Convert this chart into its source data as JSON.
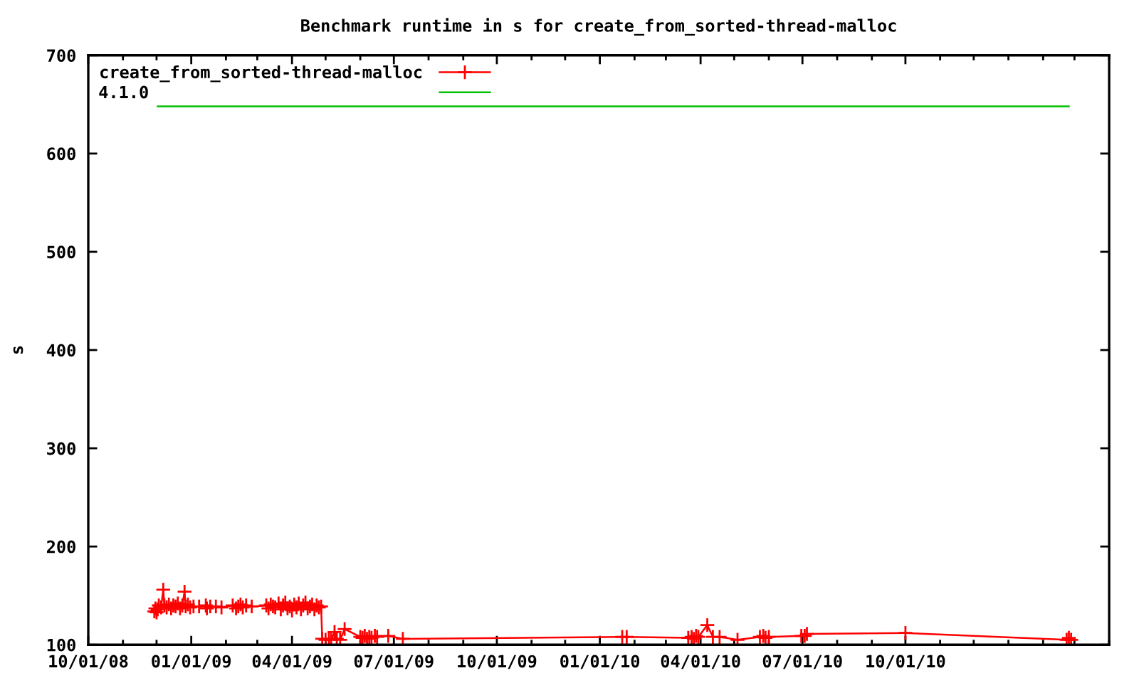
{
  "chart_data": {
    "type": "line",
    "title": "Benchmark runtime in s for create_from_sorted-thread-malloc",
    "ylabel": "s",
    "xlim": [
      "2008-10-01",
      "2011-04-01"
    ],
    "ylim": [
      100,
      700
    ],
    "xticks": [
      {
        "value": "2008-10-01",
        "label": "10/01/08"
      },
      {
        "value": "2008-11-01",
        "label": null
      },
      {
        "value": "2008-12-01",
        "label": null
      },
      {
        "value": "2009-01-01",
        "label": "01/01/09"
      },
      {
        "value": "2009-02-01",
        "label": null
      },
      {
        "value": "2009-03-01",
        "label": null
      },
      {
        "value": "2009-04-01",
        "label": "04/01/09"
      },
      {
        "value": "2009-05-01",
        "label": null
      },
      {
        "value": "2009-06-01",
        "label": null
      },
      {
        "value": "2009-07-01",
        "label": "07/01/09"
      },
      {
        "value": "2009-08-01",
        "label": null
      },
      {
        "value": "2009-09-01",
        "label": null
      },
      {
        "value": "2009-10-01",
        "label": "10/01/09"
      },
      {
        "value": "2009-11-01",
        "label": null
      },
      {
        "value": "2009-12-01",
        "label": null
      },
      {
        "value": "2010-01-01",
        "label": "01/01/10"
      },
      {
        "value": "2010-02-01",
        "label": null
      },
      {
        "value": "2010-03-01",
        "label": null
      },
      {
        "value": "2010-04-01",
        "label": "04/01/10"
      },
      {
        "value": "2010-05-01",
        "label": null
      },
      {
        "value": "2010-06-01",
        "label": null
      },
      {
        "value": "2010-07-01",
        "label": "07/01/10"
      },
      {
        "value": "2010-08-01",
        "label": null
      },
      {
        "value": "2010-09-01",
        "label": null
      },
      {
        "value": "2010-10-01",
        "label": "10/01/10"
      },
      {
        "value": "2010-11-01",
        "label": null
      },
      {
        "value": "2010-12-01",
        "label": null
      },
      {
        "value": "2011-01-01",
        "label": null
      },
      {
        "value": "2011-02-01",
        "label": null
      },
      {
        "value": "2011-03-01",
        "label": null
      },
      {
        "value": "2011-04-01",
        "label": null
      }
    ],
    "yticks": [
      100,
      200,
      300,
      400,
      500,
      600,
      700
    ],
    "legend": "top left",
    "marker": "cross",
    "line_style": "solid",
    "series": [
      {
        "name": "create_from_sorted-thread-malloc",
        "color": "#ff0000",
        "x": [
          "2008-11-29",
          "2008-11-30",
          "2008-12-01",
          "2008-12-02",
          "2008-12-03",
          "2008-12-05",
          "2008-12-07",
          "2008-12-08",
          "2008-12-10",
          "2008-12-12",
          "2008-12-14",
          "2008-12-16",
          "2008-12-18",
          "2008-12-20",
          "2008-12-22",
          "2008-12-24",
          "2008-12-26",
          "2008-12-27",
          "2008-12-29",
          "2008-12-31",
          "2009-01-03",
          "2009-01-08",
          "2009-01-14",
          "2009-01-15",
          "2009-01-18",
          "2009-01-23",
          "2009-01-28",
          "2009-02-07",
          "2009-02-10",
          "2009-02-12",
          "2009-02-14",
          "2009-02-16",
          "2009-02-19",
          "2009-02-24",
          "2009-03-09",
          "2009-03-11",
          "2009-03-13",
          "2009-03-15",
          "2009-03-17",
          "2009-03-20",
          "2009-03-22",
          "2009-03-24",
          "2009-03-26",
          "2009-03-28",
          "2009-03-30",
          "2009-04-01",
          "2009-04-03",
          "2009-04-05",
          "2009-04-07",
          "2009-04-09",
          "2009-04-11",
          "2009-04-13",
          "2009-04-15",
          "2009-04-17",
          "2009-04-19",
          "2009-04-21",
          "2009-04-23",
          "2009-04-25",
          "2009-04-27",
          "2009-04-28",
          "2009-05-01",
          "2009-05-04",
          "2009-05-06",
          "2009-05-09",
          "2009-05-11",
          "2009-05-14",
          "2009-05-18",
          "2009-06-01",
          "2009-06-03",
          "2009-06-05",
          "2009-06-07",
          "2009-06-09",
          "2009-06-11",
          "2009-06-14",
          "2009-06-16",
          "2009-06-26",
          "2009-07-09",
          "2010-01-21",
          "2010-01-25",
          "2010-03-21",
          "2010-03-24",
          "2010-03-26",
          "2010-03-28",
          "2010-03-30",
          "2010-04-07",
          "2010-04-12",
          "2010-04-18",
          "2010-05-04",
          "2010-05-24",
          "2010-05-27",
          "2010-05-29",
          "2010-06-01",
          "2010-06-30",
          "2010-07-03",
          "2010-07-05",
          "2010-10-01",
          "2011-02-22",
          "2011-02-24",
          "2011-02-26"
        ],
        "values": [
          134,
          137,
          133,
          136,
          140,
          138,
          156,
          140,
          138,
          141,
          137,
          140,
          139,
          142,
          137,
          140,
          154,
          139,
          141,
          138,
          139,
          139,
          140,
          137,
          139,
          139,
          138,
          140,
          137,
          139,
          141,
          138,
          140,
          139,
          140,
          137,
          141,
          139,
          138,
          142,
          136,
          140,
          143,
          137,
          139,
          135,
          141,
          138,
          142,
          136,
          140,
          143,
          137,
          139,
          141,
          136,
          140,
          138,
          139,
          106,
          105,
          106,
          105,
          113,
          106,
          105,
          116,
          108,
          107,
          109,
          106,
          108,
          107,
          109,
          108,
          109,
          106,
          108,
          108,
          107,
          108,
          106,
          109,
          108,
          120,
          108,
          108,
          105,
          108,
          109,
          107,
          108,
          109,
          109,
          111,
          112,
          105,
          107,
          105
        ]
      },
      {
        "name": "4.1.0",
        "color": "#00c000",
        "marker": "none",
        "x": [
          "2008-12-02",
          "2011-02-24"
        ],
        "values": [
          648,
          648
        ]
      }
    ]
  }
}
